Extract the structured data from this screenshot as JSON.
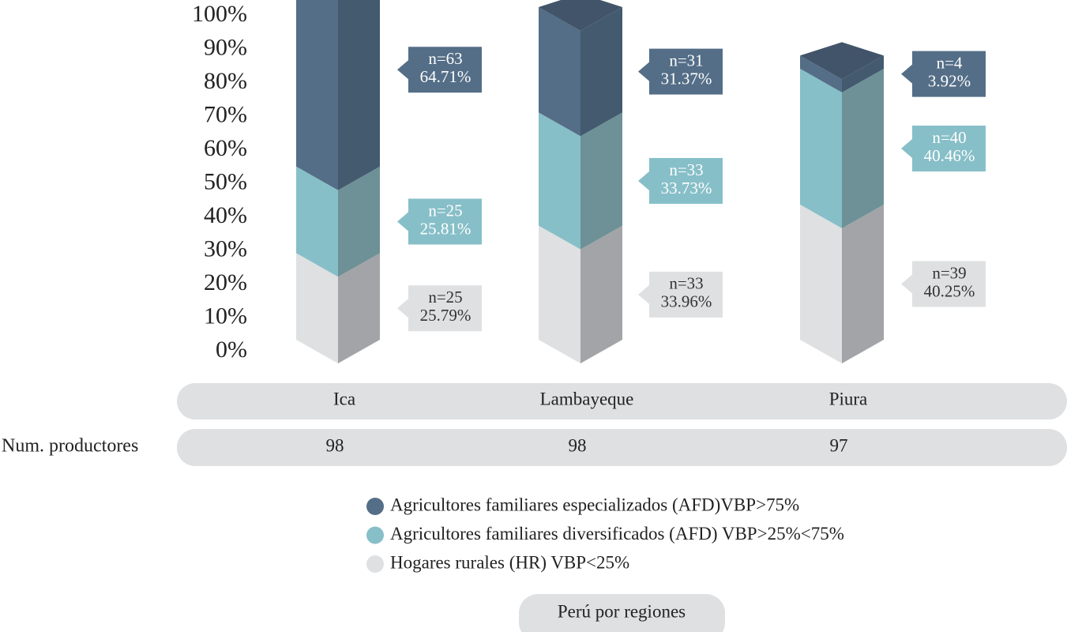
{
  "chart_data": {
    "type": "stacked_bar_3d",
    "categories": [
      "Ica",
      "Lambayeque",
      "Piura"
    ],
    "ylim": [
      0,
      100
    ],
    "yticks": [
      {
        "value": 0,
        "label": "0%"
      },
      {
        "value": 10,
        "label": "10%"
      },
      {
        "value": 20,
        "label": "20%"
      },
      {
        "value": 30,
        "label": "30%"
      },
      {
        "value": 40,
        "label": "40%"
      },
      {
        "value": 50,
        "label": "50%"
      },
      {
        "value": 60,
        "label": "60%"
      },
      {
        "value": 70,
        "label": "70%"
      },
      {
        "value": 80,
        "label": "80%"
      },
      {
        "value": 90,
        "label": "90%"
      },
      {
        "value": 100,
        "label": "100%"
      }
    ],
    "series": [
      {
        "name": "Hogares rurales (HR) VBP<25%",
        "color": "#dfe0e2",
        "side_color": "#a2a4a8",
        "label_color": "#333333",
        "values": [
          25.79,
          33.96,
          40.25
        ],
        "value_labels": [
          "25.79%",
          "33.96%",
          "40.25%"
        ],
        "n_labels": [
          "n=25",
          "n=33",
          "n=39"
        ]
      },
      {
        "name": "Agricultores familiares diversificados (AFD) VBP>25%<75%",
        "color": "#87bfc8",
        "side_color": "#6d9196",
        "label_color": "#ffffff",
        "values": [
          25.81,
          33.73,
          40.46
        ],
        "value_labels": [
          "25.81%",
          "33.73%",
          "40.46%"
        ],
        "n_labels": [
          "n=25",
          "n=33",
          "n=40"
        ]
      },
      {
        "name": "Agricultores familiares especializados (AFD)VBP>75%",
        "color": "#546e87",
        "side_color": "#435a6f",
        "label_color": "#ffffff",
        "values": [
          64.71,
          31.37,
          3.92
        ],
        "value_labels": [
          "64.71%",
          "31.37%",
          "3.92%"
        ],
        "n_labels": [
          "n=63",
          "n=31",
          "n=4"
        ]
      }
    ],
    "top_color": "#425469",
    "producers": {
      "label": "Num. productores",
      "values": [
        98,
        98,
        97
      ]
    },
    "legend_order": [
      2,
      1,
      0
    ],
    "button": "Perú por regiones"
  }
}
